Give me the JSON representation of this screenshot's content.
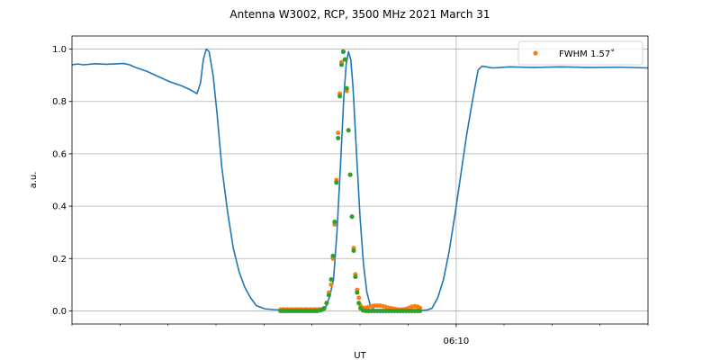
{
  "chart_data": {
    "type": "line",
    "title": "Antenna W3002, RCP, 3500 MHz 2021 March 31",
    "xlabel": "UT",
    "ylabel": "a.u.",
    "xlim": [
      0,
      100
    ],
    "ylim": [
      -0.05,
      1.05
    ],
    "x_ticks": [
      {
        "value": 66.7,
        "label": "06:10"
      }
    ],
    "x_minor_ticks": [
      0,
      8.33,
      16.67,
      25,
      33.33,
      41.67,
      50,
      58.33,
      66.7,
      75,
      83.33,
      91.67,
      100
    ],
    "y_ticks": [
      0.0,
      0.2,
      0.4,
      0.6,
      0.8,
      1.0
    ],
    "grid": true,
    "legend": {
      "placement": "top-right",
      "entries": [
        {
          "label": "FWHM 1.57$^\\circ$",
          "display": "FWHM 1.57˚",
          "color": "#ff7f0e"
        }
      ]
    },
    "series": [
      {
        "kind": "line",
        "color": "#1f77b4",
        "points": [
          [
            0,
            0.94
          ],
          [
            1,
            0.943
          ],
          [
            2,
            0.94
          ],
          [
            4,
            0.944
          ],
          [
            6,
            0.942
          ],
          [
            8,
            0.944
          ],
          [
            9,
            0.945
          ],
          [
            10,
            0.94
          ],
          [
            11,
            0.93
          ],
          [
            13,
            0.915
          ],
          [
            15,
            0.895
          ],
          [
            17,
            0.875
          ],
          [
            19,
            0.86
          ],
          [
            20.5,
            0.845
          ],
          [
            21.7,
            0.83
          ],
          [
            22.3,
            0.87
          ],
          [
            22.8,
            0.96
          ],
          [
            23.3,
            1.0
          ],
          [
            23.8,
            0.99
          ],
          [
            24.5,
            0.9
          ],
          [
            25.2,
            0.75
          ],
          [
            26,
            0.55
          ],
          [
            27,
            0.38
          ],
          [
            28,
            0.24
          ],
          [
            29,
            0.15
          ],
          [
            30,
            0.09
          ],
          [
            31,
            0.05
          ],
          [
            32,
            0.02
          ],
          [
            33.5,
            0.008
          ],
          [
            35,
            0.005
          ],
          [
            37,
            0.004
          ],
          [
            40,
            0.003
          ],
          [
            42,
            0.003
          ],
          [
            43.5,
            0.006
          ],
          [
            44.2,
            0.02
          ],
          [
            44.8,
            0.06
          ],
          [
            45.4,
            0.12
          ],
          [
            46,
            0.3
          ],
          [
            46.6,
            0.55
          ],
          [
            47.2,
            0.82
          ],
          [
            47.6,
            0.94
          ],
          [
            48,
            0.99
          ],
          [
            48.4,
            0.96
          ],
          [
            48.8,
            0.85
          ],
          [
            49.4,
            0.6
          ],
          [
            50,
            0.36
          ],
          [
            50.6,
            0.18
          ],
          [
            51.2,
            0.07
          ],
          [
            51.8,
            0.02
          ],
          [
            52.5,
            0.005
          ],
          [
            55,
            0.002
          ],
          [
            60,
            0.002
          ],
          [
            61.5,
            0.003
          ],
          [
            62.5,
            0.01
          ],
          [
            63.5,
            0.05
          ],
          [
            64.5,
            0.12
          ],
          [
            65.5,
            0.23
          ],
          [
            66.5,
            0.37
          ],
          [
            67.5,
            0.52
          ],
          [
            68.5,
            0.67
          ],
          [
            69.5,
            0.8
          ],
          [
            70.5,
            0.92
          ],
          [
            71.2,
            0.935
          ],
          [
            73,
            0.928
          ],
          [
            76,
            0.932
          ],
          [
            80,
            0.93
          ],
          [
            85,
            0.932
          ],
          [
            90,
            0.93
          ],
          [
            95,
            0.931
          ],
          [
            100,
            0.928
          ]
        ]
      },
      {
        "kind": "scatter",
        "label": "FWHM 1.57˚",
        "color": "#ff7f0e",
        "points": [
          [
            36.2,
            0.005
          ],
          [
            36.6,
            0.006
          ],
          [
            37.0,
            0.005
          ],
          [
            37.4,
            0.006
          ],
          [
            37.8,
            0.005
          ],
          [
            38.2,
            0.006
          ],
          [
            38.6,
            0.005
          ],
          [
            39.0,
            0.006
          ],
          [
            39.4,
            0.005
          ],
          [
            39.8,
            0.006
          ],
          [
            40.2,
            0.005
          ],
          [
            40.6,
            0.006
          ],
          [
            41.0,
            0.005
          ],
          [
            41.4,
            0.006
          ],
          [
            41.8,
            0.005
          ],
          [
            42.2,
            0.006
          ],
          [
            42.6,
            0.005
          ],
          [
            43.0,
            0.006
          ],
          [
            43.4,
            0.006
          ],
          [
            43.8,
            0.01
          ],
          [
            44.2,
            0.03
          ],
          [
            44.6,
            0.07
          ],
          [
            45.0,
            0.1
          ],
          [
            45.3,
            0.2
          ],
          [
            45.6,
            0.33
          ],
          [
            45.9,
            0.5
          ],
          [
            46.2,
            0.68
          ],
          [
            46.5,
            0.83
          ],
          [
            46.8,
            0.95
          ],
          [
            47.1,
            0.99
          ],
          [
            47.4,
            0.96
          ],
          [
            47.7,
            0.84
          ],
          [
            48.0,
            0.69
          ],
          [
            48.3,
            0.52
          ],
          [
            48.6,
            0.36
          ],
          [
            48.9,
            0.24
          ],
          [
            49.2,
            0.14
          ],
          [
            49.5,
            0.08
          ],
          [
            49.8,
            0.05
          ],
          [
            50.1,
            0.02
          ],
          [
            50.5,
            0.012
          ],
          [
            51.0,
            0.012
          ],
          [
            51.5,
            0.015
          ],
          [
            52.0,
            0.018
          ],
          [
            52.5,
            0.02
          ],
          [
            53.0,
            0.02
          ],
          [
            53.5,
            0.02
          ],
          [
            54.0,
            0.018
          ],
          [
            54.5,
            0.015
          ],
          [
            55.0,
            0.012
          ],
          [
            55.5,
            0.01
          ],
          [
            56.0,
            0.008
          ],
          [
            56.5,
            0.006
          ],
          [
            57.0,
            0.005
          ],
          [
            57.5,
            0.006
          ],
          [
            58.0,
            0.008
          ],
          [
            58.5,
            0.012
          ],
          [
            59.0,
            0.016
          ],
          [
            59.5,
            0.018
          ],
          [
            60.0,
            0.016
          ],
          [
            60.4,
            0.012
          ]
        ]
      },
      {
        "kind": "scatter",
        "color": "#2ca02c",
        "points": [
          [
            36.2,
            0.0
          ],
          [
            36.6,
            0.0
          ],
          [
            37.0,
            0.0
          ],
          [
            37.4,
            0.0
          ],
          [
            37.8,
            0.0
          ],
          [
            38.2,
            0.0
          ],
          [
            38.6,
            0.0
          ],
          [
            39.0,
            0.0
          ],
          [
            39.4,
            0.0
          ],
          [
            39.8,
            0.0
          ],
          [
            40.2,
            0.0
          ],
          [
            40.6,
            0.0
          ],
          [
            41.0,
            0.0
          ],
          [
            41.4,
            0.0
          ],
          [
            41.8,
            0.0
          ],
          [
            42.2,
            0.0
          ],
          [
            42.6,
            0.0
          ],
          [
            43.0,
            0.002
          ],
          [
            43.4,
            0.004
          ],
          [
            43.8,
            0.01
          ],
          [
            44.2,
            0.03
          ],
          [
            44.6,
            0.06
          ],
          [
            45.0,
            0.12
          ],
          [
            45.3,
            0.21
          ],
          [
            45.6,
            0.34
          ],
          [
            45.9,
            0.49
          ],
          [
            46.2,
            0.66
          ],
          [
            46.5,
            0.82
          ],
          [
            46.8,
            0.94
          ],
          [
            47.1,
            0.99
          ],
          [
            47.4,
            0.96
          ],
          [
            47.7,
            0.85
          ],
          [
            48.0,
            0.69
          ],
          [
            48.3,
            0.52
          ],
          [
            48.6,
            0.36
          ],
          [
            48.9,
            0.23
          ],
          [
            49.2,
            0.13
          ],
          [
            49.5,
            0.07
          ],
          [
            49.8,
            0.03
          ],
          [
            50.1,
            0.01
          ],
          [
            50.5,
            0.002
          ],
          [
            51.0,
            0.0
          ],
          [
            51.5,
            0.0
          ],
          [
            52.0,
            0.0
          ],
          [
            52.5,
            0.0
          ],
          [
            53.0,
            0.0
          ],
          [
            53.5,
            0.0
          ],
          [
            54.0,
            0.0
          ],
          [
            54.5,
            0.0
          ],
          [
            55.0,
            0.0
          ],
          [
            55.5,
            0.0
          ],
          [
            56.0,
            0.0
          ],
          [
            56.5,
            0.0
          ],
          [
            57.0,
            0.0
          ],
          [
            57.5,
            0.0
          ],
          [
            58.0,
            0.0
          ],
          [
            58.5,
            0.0
          ],
          [
            59.0,
            0.0
          ],
          [
            59.5,
            0.0
          ],
          [
            60.0,
            0.0
          ],
          [
            60.4,
            0.0
          ]
        ]
      }
    ]
  }
}
